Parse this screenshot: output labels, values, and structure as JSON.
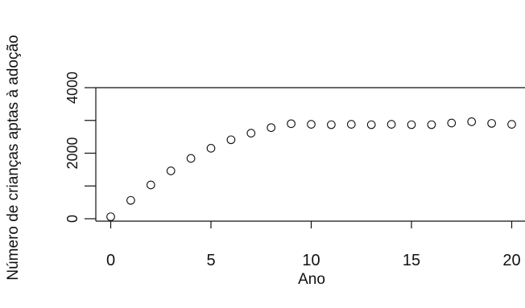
{
  "chart_data": {
    "type": "scatter",
    "title": "",
    "xlabel": "Ano",
    "ylabel": "Número de crianças aptas à adoção",
    "x_ticks": [
      "0",
      "5",
      "10",
      "15",
      "20"
    ],
    "y_ticks": [
      "0",
      "2000",
      "4000"
    ],
    "xlim": [
      -0.8,
      20.5
    ],
    "ylim": [
      0,
      4000
    ],
    "grid": false,
    "marker": "open-circle",
    "x": [
      0,
      1,
      2,
      3,
      4,
      5,
      6,
      7,
      8,
      9,
      10,
      11,
      12,
      13,
      14,
      15,
      16,
      17,
      18,
      19,
      20
    ],
    "y": [
      60,
      560,
      1030,
      1460,
      1840,
      2150,
      2410,
      2610,
      2780,
      2900,
      2880,
      2870,
      2880,
      2870,
      2880,
      2870,
      2870,
      2920,
      2960,
      2910,
      2880
    ]
  },
  "colors": {
    "ink": "#111111",
    "background": "#ffffff"
  }
}
